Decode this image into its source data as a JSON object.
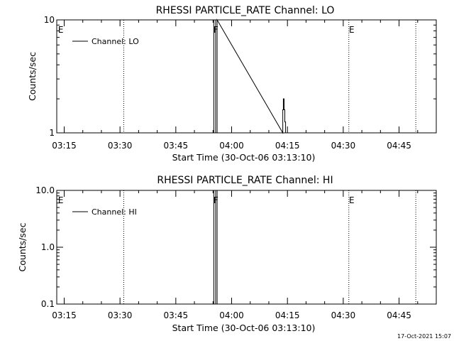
{
  "footer_timestamp": "17-Oct-2021 15:07",
  "chart_data": [
    {
      "type": "line",
      "title": "RHESSI PARTICLE_RATE Channel: LO",
      "xlabel": "Start Time (30-Oct-06 03:13:10)",
      "ylabel": "Counts/sec",
      "yscale": "log",
      "xlim": [
        "03:13:00",
        "04:55:00"
      ],
      "ylim": [
        1,
        10
      ],
      "x_ticks": [
        "03:15",
        "03:30",
        "03:45",
        "04:00",
        "04:15",
        "04:30",
        "04:45"
      ],
      "y_ticks": [
        "1",
        "10"
      ],
      "legend": "top-left",
      "series": [
        {
          "name": "Channel: LO",
          "x": [
            "03:55:12",
            "03:55:12",
            "03:55:42",
            "03:55:42",
            "03:56:06",
            "03:56:06",
            "04:13:45",
            "04:13:45",
            "04:13:54",
            "04:13:54",
            "04:14:06",
            "04:14:06",
            "04:14:18",
            "04:14:18",
            "04:14:30",
            "04:14:30"
          ],
          "y": [
            1,
            10,
            10,
            1,
            1,
            10,
            1,
            1.6,
            1.6,
            2.0,
            2.0,
            1.6,
            1.6,
            1.25,
            1.25,
            1
          ]
        }
      ],
      "markers": [
        {
          "time": "03:13:30",
          "label": "E",
          "line": false
        },
        {
          "time": "03:31:00",
          "label": "",
          "line": true
        },
        {
          "time": "03:55:12",
          "label": "F",
          "line": false
        },
        {
          "time": "04:31:30",
          "label": "E",
          "line": true
        },
        {
          "time": "04:49:30",
          "label": "",
          "line": true
        }
      ]
    },
    {
      "type": "line",
      "title": "RHESSI PARTICLE_RATE Channel: HI",
      "xlabel": "Start Time (30-Oct-06 03:13:10)",
      "ylabel": "Counts/sec",
      "yscale": "log",
      "xlim": [
        "03:13:00",
        "04:55:00"
      ],
      "ylim": [
        0.1,
        10
      ],
      "x_ticks": [
        "03:15",
        "03:30",
        "03:45",
        "04:00",
        "04:15",
        "04:30",
        "04:45"
      ],
      "y_ticks": [
        "0.1",
        "1.0",
        "10.0"
      ],
      "legend": "top-left",
      "series": [
        {
          "name": "Channel: HI",
          "x": [
            "03:55:12",
            "03:55:12",
            "03:55:42",
            "03:55:42",
            "03:56:06",
            "03:56:06"
          ],
          "y": [
            0.1,
            10,
            10,
            0.1,
            0.1,
            10
          ]
        }
      ],
      "markers": [
        {
          "time": "03:13:30",
          "label": "E",
          "line": false
        },
        {
          "time": "03:31:00",
          "label": "",
          "line": true
        },
        {
          "time": "03:55:12",
          "label": "F",
          "line": false
        },
        {
          "time": "04:31:30",
          "label": "E",
          "line": true
        },
        {
          "time": "04:49:30",
          "label": "",
          "line": true
        }
      ]
    }
  ]
}
